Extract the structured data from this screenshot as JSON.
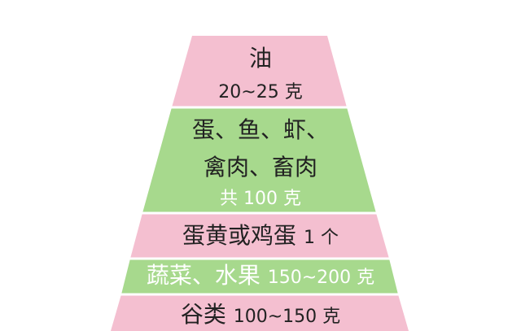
{
  "pyramid": {
    "colors": {
      "pink": "#f4bfd0",
      "green": "#a7d98d",
      "separator": "#ffffff"
    },
    "layers": [
      {
        "name": "油",
        "amount": "20~25 克"
      },
      {
        "name_line1": "蛋、鱼、虾、",
        "name_line2": "禽肉、畜肉",
        "amount": "共 100 克"
      },
      {
        "name": "蛋黄或鸡蛋",
        "amount": "1 个"
      },
      {
        "name": "蔬菜、水果",
        "amount": "150~200 克"
      },
      {
        "name": "谷类",
        "amount": "100~150 克"
      }
    ]
  }
}
